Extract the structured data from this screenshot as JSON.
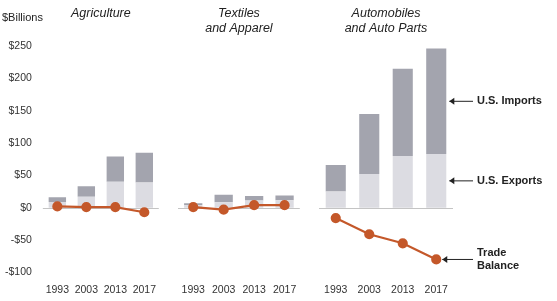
{
  "chart_data": [
    {
      "type": "bar",
      "title": "Agriculture",
      "ylabel": "$Billions",
      "categories": [
        "1993",
        "2003",
        "2013",
        "2017"
      ],
      "stacked": true,
      "grid": false,
      "ylim": [
        -100,
        250
      ],
      "yticks": [
        {
          "value": -100,
          "label": "-$100"
        },
        {
          "value": -50,
          "label": "-$50"
        },
        {
          "value": 0,
          "label": "$0"
        },
        {
          "value": 50,
          "label": "$50"
        },
        {
          "value": 100,
          "label": "$100"
        },
        {
          "value": 150,
          "label": "$150"
        },
        {
          "value": 200,
          "label": "$200"
        },
        {
          "value": 250,
          "label": "$250"
        }
      ],
      "series": [
        {
          "name": "U.S. Exports",
          "color": "#dcdce2",
          "values": [
            9,
            17,
            40,
            39
          ]
        },
        {
          "name": "U.S. Imports",
          "color": "#a3a4ae",
          "values": [
            7,
            16,
            39,
            46
          ]
        },
        {
          "name": "Trade Balance",
          "type": "line",
          "marker": "circle",
          "color": "#c4582a",
          "values": [
            2,
            1,
            1,
            -7
          ]
        }
      ]
    },
    {
      "type": "bar",
      "title": "Textiles\nand Apparel",
      "categories": [
        "1993",
        "2003",
        "2013",
        "2017"
      ],
      "stacked": true,
      "grid": false,
      "tick_labels": "x",
      "ylim": [
        -100,
        250
      ],
      "yticks": [
        {
          "value": -100,
          "label": "-$100"
        },
        {
          "value": -50,
          "label": "-$50"
        },
        {
          "value": 0,
          "label": "$0"
        },
        {
          "value": 50,
          "label": "$50"
        },
        {
          "value": 100,
          "label": "$100"
        },
        {
          "value": 150,
          "label": "$150"
        },
        {
          "value": 200,
          "label": "$200"
        },
        {
          "value": 250,
          "label": "$250"
        }
      ],
      "series": [
        {
          "name": "U.S. Exports",
          "color": "#dcdce2",
          "values": [
            4,
            8.5,
            11,
            11.5
          ]
        },
        {
          "name": "U.S. Imports",
          "color": "#a3a4ae",
          "values": [
            3,
            11.5,
            7,
            7.5
          ]
        },
        {
          "name": "Trade Balance",
          "type": "line",
          "marker": "circle",
          "color": "#c4582a",
          "values": [
            1,
            -3,
            4,
            4
          ]
        }
      ]
    },
    {
      "type": "bar",
      "title": "Automobiles\nand Auto Parts",
      "categories": [
        "1993",
        "2003",
        "2013",
        "2017"
      ],
      "stacked": true,
      "grid": false,
      "tick_labels": "x",
      "legend": "right",
      "ylim": [
        -100,
        250
      ],
      "yticks": [
        {
          "value": -100,
          "label": "-$100"
        },
        {
          "value": -50,
          "label": "-$50"
        },
        {
          "value": 0,
          "label": "$0"
        },
        {
          "value": 50,
          "label": "$50"
        },
        {
          "value": 100,
          "label": "$100"
        },
        {
          "value": 150,
          "label": "$150"
        },
        {
          "value": 200,
          "label": "$200"
        },
        {
          "value": 250,
          "label": "$250"
        }
      ],
      "series": [
        {
          "name": "U.S. Exports",
          "color": "#dcdce2",
          "values": [
            25,
            52,
            80,
            83
          ]
        },
        {
          "name": "U.S. Imports",
          "color": "#a3a4ae",
          "values": [
            41,
            93,
            135,
            163
          ]
        },
        {
          "name": "Trade Balance",
          "type": "line",
          "marker": "circle",
          "color": "#c4582a",
          "values": [
            -16,
            -41,
            -55,
            -80
          ]
        }
      ]
    }
  ]
}
